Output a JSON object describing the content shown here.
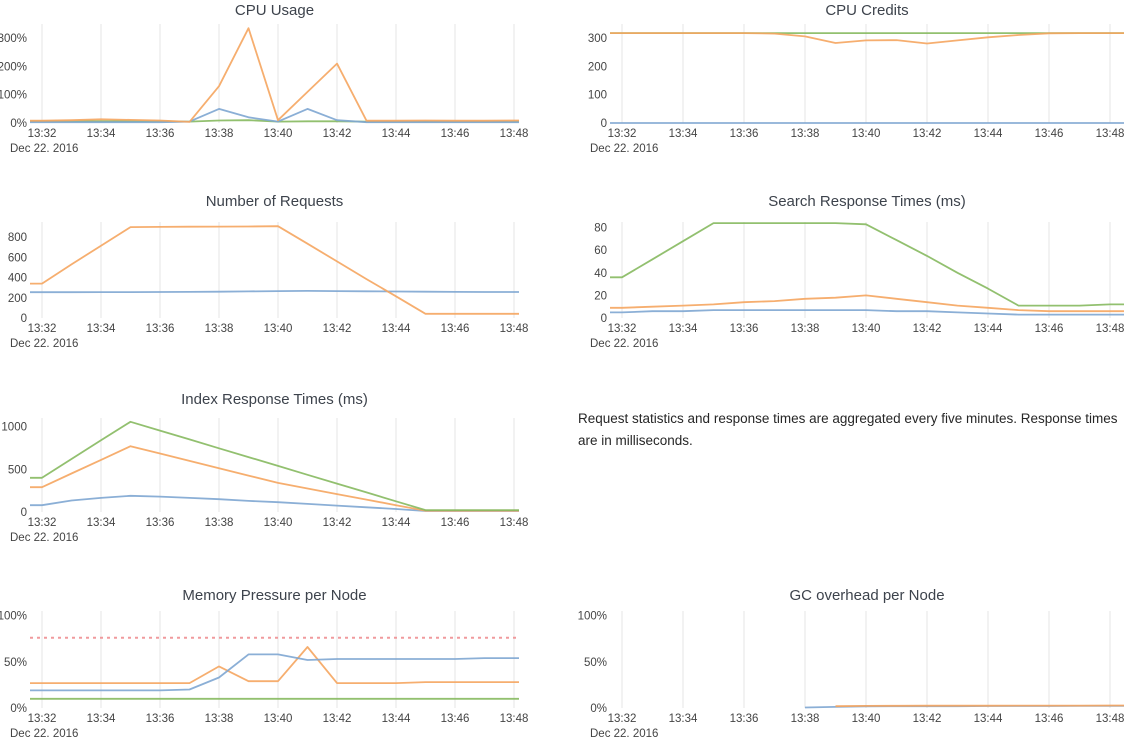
{
  "colors": {
    "blue": "#7ea6d2",
    "orange": "#f5a55f",
    "green": "#86b95f",
    "threshold_red": "#f09a9d",
    "gridline": "#e6e6e6",
    "tick_text": "#444444",
    "title_text": "#3d434c",
    "note_text": "#262626",
    "background": "#ffffff"
  },
  "x_axis": {
    "tick_labels": [
      "13:32",
      "13:34",
      "13:36",
      "13:38",
      "13:40",
      "13:42",
      "13:44",
      "13:46",
      "13:48"
    ],
    "date_label": "Dec 22. 2016",
    "start_minute": 32,
    "end_minute": 48
  },
  "note": {
    "text": "Request statistics and response times are aggregated every five minutes. Response times are in milliseconds."
  },
  "chart_data": [
    {
      "type": "line",
      "title": "CPU Usage",
      "slot": {
        "row": 0,
        "col": "left"
      },
      "ylim": [
        0,
        350
      ],
      "grid": true,
      "legend_position": "none",
      "yticks": [
        {
          "v": 0,
          "label": "0%"
        },
        {
          "v": 100,
          "label": "100%"
        },
        {
          "v": 200,
          "label": "200%"
        },
        {
          "v": 300,
          "label": "300%"
        }
      ],
      "series": [
        {
          "name": "green",
          "color_key": "green",
          "start_minute": 32,
          "values": [
            6,
            6,
            6,
            6,
            6,
            5,
            9,
            10,
            5,
            6,
            6,
            5,
            5,
            5,
            5,
            5,
            5
          ]
        },
        {
          "name": "blue",
          "color_key": "blue",
          "start_minute": 32,
          "values": [
            3,
            3,
            3,
            3,
            3,
            5,
            50,
            20,
            5,
            50,
            10,
            3,
            3,
            3,
            3,
            3,
            3
          ]
        },
        {
          "name": "orange",
          "color_key": "orange",
          "start_minute": 32,
          "values": [
            8,
            10,
            13,
            11,
            9,
            4,
            130,
            335,
            10,
            110,
            210,
            8,
            8,
            9,
            8,
            8,
            9
          ]
        }
      ]
    },
    {
      "type": "line",
      "title": "CPU Credits",
      "slot": {
        "row": 0,
        "col": "right"
      },
      "ylim": [
        0,
        350
      ],
      "grid": true,
      "legend_position": "none",
      "yticks": [
        {
          "v": 0,
          "label": "0"
        },
        {
          "v": 100,
          "label": "100"
        },
        {
          "v": 200,
          "label": "200"
        },
        {
          "v": 300,
          "label": "300"
        }
      ],
      "series": [
        {
          "name": "blue",
          "color_key": "blue",
          "start_minute": 32,
          "values": [
            0,
            0,
            0,
            0,
            0,
            0,
            0,
            0,
            0,
            0,
            0,
            0,
            0,
            0,
            0,
            0,
            0
          ]
        },
        {
          "name": "green",
          "color_key": "green",
          "start_minute": 32,
          "values": [
            318,
            318,
            318,
            318,
            318,
            318,
            318,
            318,
            318,
            318,
            318,
            318,
            318,
            318,
            318,
            318,
            318
          ]
        },
        {
          "name": "orange",
          "color_key": "orange",
          "start_minute": 32,
          "values": [
            318,
            318,
            318,
            318,
            318,
            316,
            306,
            283,
            292,
            293,
            281,
            292,
            303,
            311,
            317,
            318,
            318
          ]
        }
      ]
    },
    {
      "type": "line",
      "title": "Number of Requests",
      "slot": {
        "row": 1,
        "col": "left"
      },
      "ylim": [
        0,
        950
      ],
      "grid": true,
      "legend_position": "none",
      "yticks": [
        {
          "v": 0,
          "label": "0"
        },
        {
          "v": 200,
          "label": "200"
        },
        {
          "v": 400,
          "label": "400"
        },
        {
          "v": 600,
          "label": "600"
        },
        {
          "v": 800,
          "label": "800"
        }
      ],
      "series": [
        {
          "name": "blue",
          "color_key": "blue",
          "start_minute": 32,
          "values": [
            255,
            255,
            256,
            256,
            257,
            258,
            260,
            263,
            266,
            268,
            266,
            264,
            262,
            260,
            258,
            257,
            257
          ]
        },
        {
          "name": "orange",
          "color_key": "orange",
          "start_minute": 32,
          "values": [
            340,
            530,
            715,
            900,
            902,
            903,
            904,
            905,
            908,
            735,
            560,
            385,
            215,
            42,
            42,
            42,
            42
          ]
        }
      ]
    },
    {
      "type": "line",
      "title": "Search Response Times (ms)",
      "slot": {
        "row": 1,
        "col": "right"
      },
      "ylim": [
        0,
        85
      ],
      "grid": true,
      "legend_position": "none",
      "yticks": [
        {
          "v": 0,
          "label": "0"
        },
        {
          "v": 20,
          "label": "20"
        },
        {
          "v": 40,
          "label": "40"
        },
        {
          "v": 60,
          "label": "60"
        },
        {
          "v": 80,
          "label": "80"
        }
      ],
      "series": [
        {
          "name": "blue",
          "color_key": "blue",
          "start_minute": 32,
          "values": [
            5,
            6,
            6,
            7,
            7,
            7,
            7,
            7,
            7,
            6,
            6,
            5,
            4,
            3,
            3,
            3,
            3
          ]
        },
        {
          "name": "orange",
          "color_key": "orange",
          "start_minute": 32,
          "values": [
            9,
            10,
            11,
            12,
            14,
            15,
            17,
            18,
            20,
            17,
            14,
            11,
            9,
            7,
            6,
            6,
            6
          ]
        },
        {
          "name": "green",
          "color_key": "green",
          "start_minute": 32,
          "values": [
            36,
            52,
            68,
            84,
            84,
            84,
            84,
            84,
            83,
            69,
            55,
            40,
            26,
            11,
            11,
            11,
            12
          ]
        }
      ]
    },
    {
      "type": "line",
      "title": "Index Response Times (ms)",
      "slot": {
        "row": 2,
        "col": "left"
      },
      "ylim": [
        0,
        1100
      ],
      "grid": true,
      "legend_position": "none",
      "yticks": [
        {
          "v": 0,
          "label": "0"
        },
        {
          "v": 500,
          "label": "500"
        },
        {
          "v": 1000,
          "label": "1000"
        }
      ],
      "series": [
        {
          "name": "blue",
          "color_key": "blue",
          "start_minute": 32,
          "values": [
            80,
            135,
            165,
            190,
            180,
            165,
            150,
            130,
            115,
            95,
            75,
            55,
            35,
            12,
            12,
            12,
            12
          ]
        },
        {
          "name": "orange",
          "color_key": "orange",
          "start_minute": 32,
          "values": [
            290,
            450,
            610,
            770,
            684,
            598,
            512,
            426,
            340,
            275,
            210,
            145,
            80,
            15,
            15,
            15,
            15
          ]
        },
        {
          "name": "green",
          "color_key": "green",
          "start_minute": 32,
          "values": [
            400,
            620,
            840,
            1055,
            952,
            849,
            745,
            642,
            539,
            435,
            332,
            229,
            125,
            22,
            22,
            22,
            22
          ]
        }
      ]
    },
    {
      "type": "line",
      "title": "Memory Pressure per Node",
      "slot": {
        "row": 3,
        "col": "left"
      },
      "ylim": [
        0,
        105
      ],
      "grid": true,
      "legend_position": "none",
      "threshold": {
        "value": 76,
        "style": "dashed",
        "color_key": "threshold_red"
      },
      "yticks": [
        {
          "v": 0,
          "label": "0%"
        },
        {
          "v": 50,
          "label": "50%"
        },
        {
          "v": 100,
          "label": "100%"
        }
      ],
      "series": [
        {
          "name": "green",
          "color_key": "green",
          "start_minute": 32,
          "values": [
            10,
            10,
            10,
            10,
            10,
            10,
            10,
            10,
            10,
            10,
            10,
            10,
            10,
            10,
            10,
            10,
            10
          ]
        },
        {
          "name": "orange",
          "color_key": "orange",
          "start_minute": 32,
          "values": [
            27,
            27,
            27,
            27,
            27,
            27,
            45,
            29,
            29,
            66,
            27,
            27,
            27,
            28,
            28,
            28,
            28
          ]
        },
        {
          "name": "blue",
          "color_key": "blue",
          "start_minute": 32,
          "values": [
            19,
            19,
            19,
            19,
            19,
            20,
            33,
            58,
            58,
            52,
            53,
            53,
            53,
            53,
            53,
            54,
            54
          ]
        }
      ]
    },
    {
      "type": "line",
      "title": "GC overhead per Node",
      "slot": {
        "row": 3,
        "col": "right"
      },
      "ylim": [
        0,
        105
      ],
      "grid": true,
      "legend_position": "none",
      "yticks": [
        {
          "v": 0,
          "label": "0%"
        },
        {
          "v": 50,
          "label": "50%"
        },
        {
          "v": 100,
          "label": "100%"
        }
      ],
      "series": [
        {
          "name": "blue",
          "color_key": "blue",
          "start_minute": 38,
          "values": [
            0.5,
            1.2,
            1.8,
            2,
            2,
            2,
            2.2,
            2.2,
            2.2,
            2.3,
            2.3
          ]
        },
        {
          "name": "orange",
          "color_key": "orange",
          "start_minute": 39,
          "values": [
            2,
            2.3,
            2.4,
            2.5,
            2.5,
            2.5,
            2.6,
            2.6,
            2.6,
            2.7
          ]
        }
      ]
    }
  ]
}
